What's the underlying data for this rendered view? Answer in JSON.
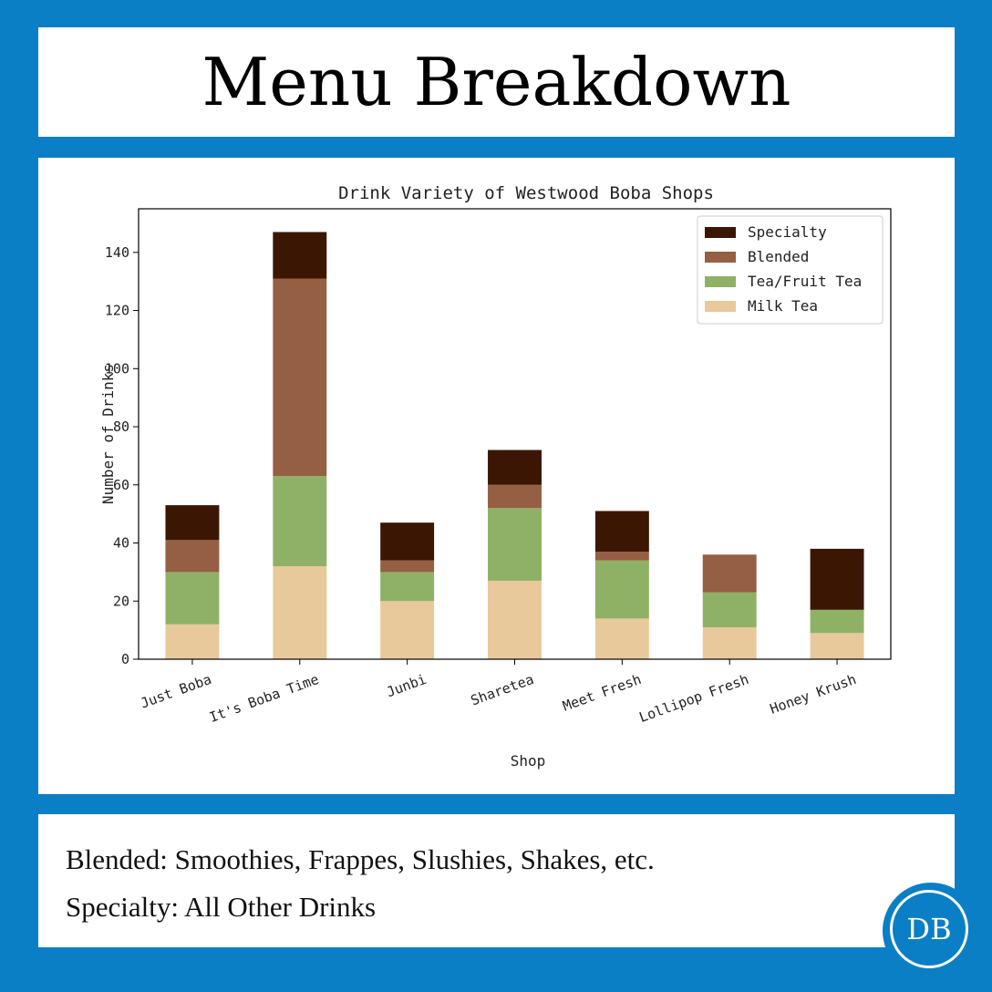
{
  "header": {
    "title": "Menu Breakdown"
  },
  "footer": {
    "note_1": "Blended: Smoothies, Frappes, Slushies, Shakes, etc.",
    "note_2": "Specialty: All Other Drinks"
  },
  "logo": {
    "text": "DB"
  },
  "colors": {
    "background": "#0a7fc5",
    "panel": "#ffffff"
  },
  "chart_data": {
    "type": "bar",
    "stacked": true,
    "title": "Drink Variety of Westwood Boba Shops",
    "xlabel": "Shop",
    "ylabel": "Number of Drinks",
    "ylim": [
      0,
      155
    ],
    "yticks": [
      0,
      20,
      40,
      60,
      80,
      100,
      120,
      140
    ],
    "categories": [
      "Just Boba",
      "It's Boba Time",
      "Junbi",
      "Sharetea",
      "Meet Fresh",
      "Lollipop Fresh",
      "Honey Krush"
    ],
    "series": [
      {
        "name": "Milk Tea",
        "color": "#e8c99b",
        "values": [
          12,
          32,
          20,
          27,
          14,
          11,
          9
        ]
      },
      {
        "name": "Tea/Fruit Tea",
        "color": "#8fb165",
        "values": [
          18,
          31,
          10,
          25,
          20,
          12,
          8
        ]
      },
      {
        "name": "Blended",
        "color": "#955f43",
        "values": [
          11,
          68,
          4,
          8,
          3,
          13,
          0
        ]
      },
      {
        "name": "Specialty",
        "color": "#3b1703",
        "values": [
          12,
          16,
          13,
          12,
          14,
          0,
          21
        ]
      }
    ],
    "legend_order": [
      "Specialty",
      "Blended",
      "Tea/Fruit Tea",
      "Milk Tea"
    ],
    "legend_position": "top-right",
    "grid": false
  }
}
